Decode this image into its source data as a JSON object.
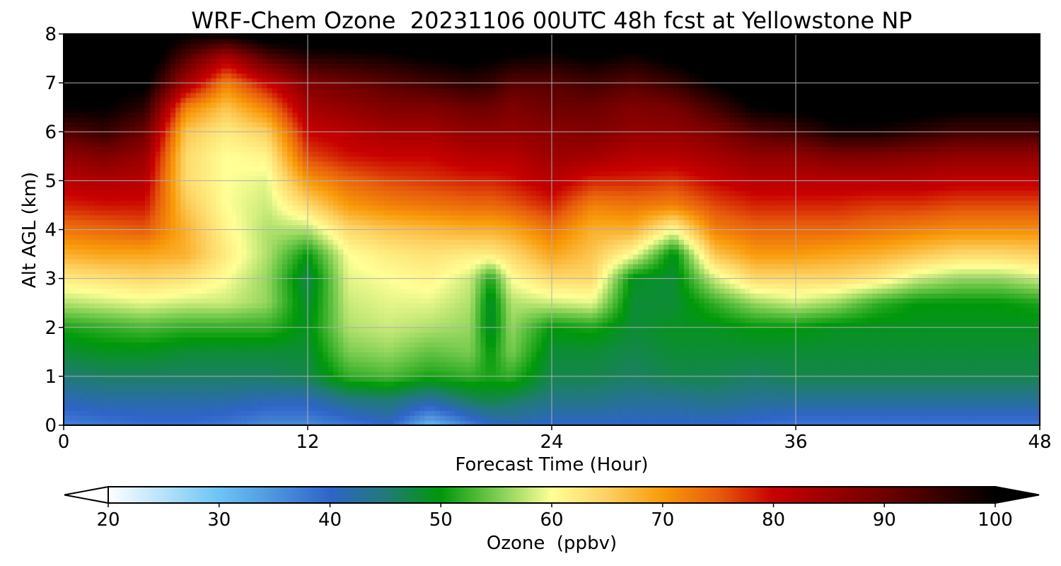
{
  "chart_data": {
    "type": "heatmap",
    "title": "WRF-Chem Ozone  20231106 00UTC 48h fcst at Yellowstone NP",
    "xlabel": "Forecast Time (Hour)",
    "ylabel": "Alt AGL (km)",
    "xlim": [
      0,
      48
    ],
    "ylim": [
      0,
      8
    ],
    "x_ticks": [
      "0",
      "12",
      "24",
      "36",
      "48"
    ],
    "y_ticks": [
      "0",
      "1",
      "2",
      "3",
      "4",
      "5",
      "6",
      "7",
      "8"
    ],
    "grid": true,
    "colorbar": {
      "label": "Ozone  (ppbv)",
      "range": [
        20,
        100
      ],
      "ticks": [
        "20",
        "30",
        "40",
        "50",
        "60",
        "70",
        "80",
        "90",
        "100"
      ],
      "extend": "both",
      "colors": [
        {
          "value": 20,
          "color": "#ffffff"
        },
        {
          "value": 30,
          "color": "#6cc4f4"
        },
        {
          "value": 40,
          "color": "#2f64c8"
        },
        {
          "value": 45,
          "color": "#217a78"
        },
        {
          "value": 50,
          "color": "#00980a"
        },
        {
          "value": 55,
          "color": "#7acc50"
        },
        {
          "value": 60,
          "color": "#ffff96"
        },
        {
          "value": 65,
          "color": "#fdd060"
        },
        {
          "value": 70,
          "color": "#f99a0a"
        },
        {
          "value": 75,
          "color": "#e75c0c"
        },
        {
          "value": 80,
          "color": "#c80000"
        },
        {
          "value": 90,
          "color": "#6e0000"
        },
        {
          "value": 100,
          "color": "#000000"
        }
      ]
    },
    "hours": [
      0,
      2,
      4,
      6,
      8,
      10,
      12,
      14,
      16,
      18,
      20,
      21,
      22,
      24,
      26,
      28,
      30,
      32,
      34,
      36,
      38,
      40,
      42,
      44,
      46,
      48
    ],
    "altitudes_km": [
      0,
      0.5,
      1,
      1.5,
      2,
      2.5,
      3,
      3.5,
      4,
      4.5,
      5,
      5.5,
      6,
      6.5,
      7,
      7.5,
      8
    ],
    "ozone_ppbv_by_hour": [
      [
        37,
        41,
        45,
        48,
        51,
        57,
        62,
        68,
        73,
        78,
        82,
        86,
        92,
        100,
        102,
        104,
        105
      ],
      [
        38,
        42,
        46,
        49,
        52,
        58,
        63,
        69,
        74,
        79,
        83,
        88,
        95,
        100,
        102,
        104,
        105
      ],
      [
        39,
        42,
        46,
        49,
        53,
        59,
        64,
        69,
        75,
        79,
        82,
        85,
        90,
        96,
        101,
        104,
        105
      ],
      [
        39,
        42,
        46,
        48,
        52,
        58,
        63,
        68,
        68,
        66,
        64,
        64,
        66,
        72,
        84,
        92,
        100
      ],
      [
        38,
        42,
        46,
        48,
        52,
        58,
        60,
        62,
        61,
        60,
        60,
        60,
        62,
        66,
        72,
        82,
        100
      ],
      [
        36,
        41,
        46,
        48,
        52,
        56,
        56,
        57,
        57,
        58,
        59,
        61,
        65,
        72,
        80,
        92,
        103
      ],
      [
        36,
        41,
        47,
        48,
        49,
        48,
        47,
        50,
        57,
        64,
        70,
        76,
        80,
        84,
        88,
        96,
        104
      ],
      [
        38,
        44,
        52,
        55,
        57,
        58,
        59,
        60,
        64,
        70,
        74,
        79,
        82,
        86,
        90,
        97,
        104
      ],
      [
        40,
        45,
        53,
        56,
        58,
        59,
        60,
        62,
        66,
        72,
        76,
        80,
        84,
        88,
        92,
        98,
        104
      ],
      [
        31,
        42,
        51,
        54,
        57,
        59,
        61,
        63,
        67,
        73,
        77,
        80,
        84,
        88,
        94,
        100,
        104
      ],
      [
        37,
        46,
        52,
        55,
        56,
        57,
        58,
        62,
        68,
        74,
        78,
        82,
        86,
        90,
        96,
        101,
        104
      ],
      [
        40,
        47,
        51,
        50,
        48,
        48,
        51,
        62,
        68,
        74,
        78,
        82,
        86,
        90,
        95,
        100,
        104
      ],
      [
        41,
        46,
        52,
        55,
        56,
        57,
        60,
        64,
        69,
        75,
        79,
        82,
        86,
        88,
        92,
        99,
        104
      ],
      [
        40,
        44,
        47,
        48,
        50,
        58,
        64,
        69,
        73,
        78,
        82,
        85,
        87,
        90,
        92,
        98,
        104
      ],
      [
        40,
        44,
        47,
        48,
        51,
        59,
        64,
        66,
        68,
        72,
        78,
        84,
        88,
        90,
        94,
        100,
        104
      ],
      [
        40,
        43,
        46,
        47,
        48,
        48,
        49,
        60,
        68,
        73,
        78,
        82,
        86,
        88,
        92,
        98,
        104
      ],
      [
        40,
        43,
        47,
        48,
        49,
        48,
        48,
        49,
        60,
        72,
        77,
        82,
        86,
        89,
        95,
        101,
        104
      ],
      [
        40,
        44,
        47,
        48,
        49,
        52,
        58,
        66,
        72,
        76,
        80,
        84,
        88,
        94,
        100,
        104,
        105
      ],
      [
        39,
        43,
        46,
        48,
        50,
        56,
        64,
        70,
        74,
        78,
        82,
        86,
        92,
        100,
        103,
        104,
        105
      ],
      [
        38,
        43,
        47,
        48,
        50,
        58,
        64,
        70,
        74,
        78,
        82,
        86,
        94,
        101,
        104,
        105,
        105
      ],
      [
        38,
        43,
        47,
        48,
        49,
        56,
        64,
        69,
        74,
        78,
        82,
        88,
        98,
        103,
        104,
        105,
        105
      ],
      [
        38,
        43,
        47,
        48,
        49,
        52,
        62,
        68,
        73,
        77,
        82,
        88,
        98,
        103,
        104,
        105,
        105
      ],
      [
        38,
        43,
        47,
        48,
        49,
        50,
        58,
        66,
        72,
        77,
        82,
        87,
        96,
        102,
        104,
        105,
        105
      ],
      [
        38,
        43,
        47,
        48,
        49,
        50,
        56,
        64,
        71,
        76,
        81,
        86,
        94,
        101,
        104,
        105,
        105
      ],
      [
        38,
        43,
        47,
        48,
        49,
        50,
        56,
        64,
        71,
        76,
        81,
        86,
        94,
        101,
        104,
        105,
        105
      ],
      [
        38,
        43,
        47,
        48,
        49,
        51,
        58,
        65,
        71,
        76,
        81,
        86,
        94,
        101,
        104,
        105,
        105
      ]
    ]
  }
}
